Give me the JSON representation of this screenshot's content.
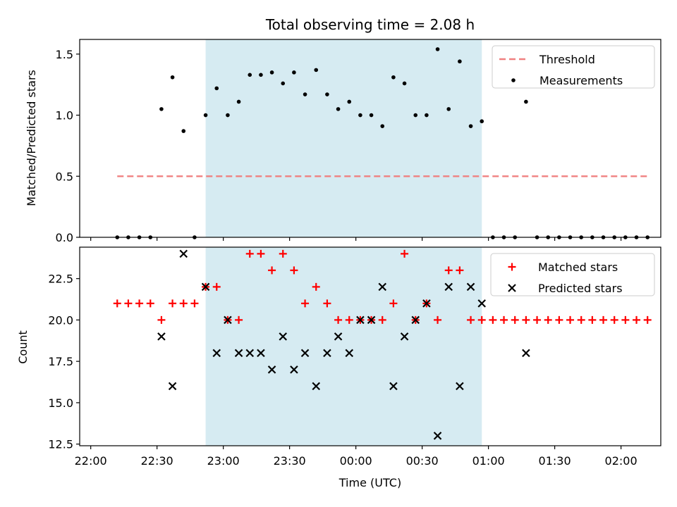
{
  "chart_data": {
    "type": "scatter",
    "title": "Total observing time = 2.08 h",
    "xlabel": "Time (UTC)",
    "x_ticks": [
      "22:00",
      "22:30",
      "23:00",
      "23:30",
      "00:00",
      "00:30",
      "01:00",
      "01:30",
      "02:00"
    ],
    "x_unit": "minutes since 22:00",
    "xlim": [
      -5,
      258
    ],
    "shaded_interval": {
      "from": 52,
      "to": 177,
      "color": "#add8e6"
    },
    "panels": [
      {
        "ylabel": "Matched/Predicted stars",
        "ylim": [
          0,
          1.62
        ],
        "y_ticks": [
          "0.0",
          "0.5",
          "1.0",
          "1.5"
        ],
        "legend_position": "top-right",
        "series": [
          {
            "name": "Threshold",
            "kind": "dashed-line",
            "color": "#f08080",
            "x": [
              12,
              252
            ],
            "y": [
              0.5,
              0.5
            ]
          },
          {
            "name": "Measurements",
            "kind": "points",
            "color": "#000000",
            "points": [
              [
                12,
                0
              ],
              [
                17,
                0
              ],
              [
                22,
                0
              ],
              [
                27,
                0
              ],
              [
                32,
                1.05
              ],
              [
                37,
                1.31
              ],
              [
                42,
                0.87
              ],
              [
                47,
                0
              ],
              [
                52,
                1.0
              ],
              [
                57,
                1.22
              ],
              [
                62,
                1.0
              ],
              [
                67,
                1.11
              ],
              [
                72,
                1.33
              ],
              [
                77,
                1.33
              ],
              [
                82,
                1.35
              ],
              [
                87,
                1.26
              ],
              [
                92,
                1.35
              ],
              [
                97,
                1.17
              ],
              [
                102,
                1.37
              ],
              [
                107,
                1.17
              ],
              [
                112,
                1.05
              ],
              [
                117,
                1.11
              ],
              [
                122,
                1.0
              ],
              [
                127,
                1.0
              ],
              [
                132,
                0.91
              ],
              [
                137,
                1.31
              ],
              [
                142,
                1.26
              ],
              [
                147,
                1.0
              ],
              [
                152,
                1.0
              ],
              [
                157,
                1.54
              ],
              [
                162,
                1.05
              ],
              [
                167,
                1.44
              ],
              [
                172,
                0.91
              ],
              [
                177,
                0.95
              ],
              [
                182,
                0
              ],
              [
                187,
                0
              ],
              [
                192,
                0
              ],
              [
                197,
                1.11
              ],
              [
                202,
                0
              ],
              [
                207,
                0
              ],
              [
                212,
                0
              ],
              [
                217,
                0
              ],
              [
                222,
                0
              ],
              [
                227,
                0
              ],
              [
                232,
                0
              ],
              [
                237,
                0
              ],
              [
                242,
                0
              ],
              [
                247,
                0
              ],
              [
                252,
                0
              ]
            ]
          }
        ]
      },
      {
        "ylabel": "Count",
        "ylim": [
          12.4,
          24.4
        ],
        "y_ticks": [
          "12.5",
          "15.0",
          "17.5",
          "20.0",
          "22.5"
        ],
        "legend_position": "top-right",
        "series": [
          {
            "name": "Matched stars",
            "kind": "plus",
            "color": "#ff0000",
            "points": [
              [
                12,
                21
              ],
              [
                17,
                21
              ],
              [
                22,
                21
              ],
              [
                27,
                21
              ],
              [
                32,
                20
              ],
              [
                37,
                21
              ],
              [
                42,
                21
              ],
              [
                47,
                21
              ],
              [
                52,
                22
              ],
              [
                57,
                22
              ],
              [
                62,
                20
              ],
              [
                67,
                20
              ],
              [
                72,
                24
              ],
              [
                77,
                24
              ],
              [
                82,
                23
              ],
              [
                87,
                24
              ],
              [
                92,
                23
              ],
              [
                97,
                21
              ],
              [
                102,
                22
              ],
              [
                107,
                21
              ],
              [
                112,
                20
              ],
              [
                117,
                20
              ],
              [
                122,
                20
              ],
              [
                127,
                20
              ],
              [
                132,
                20
              ],
              [
                137,
                21
              ],
              [
                142,
                24
              ],
              [
                147,
                20
              ],
              [
                152,
                21
              ],
              [
                157,
                20
              ],
              [
                162,
                23
              ],
              [
                167,
                23
              ],
              [
                172,
                20
              ],
              [
                177,
                20
              ],
              [
                182,
                20
              ],
              [
                187,
                20
              ],
              [
                192,
                20
              ],
              [
                197,
                20
              ],
              [
                202,
                20
              ],
              [
                207,
                20
              ],
              [
                212,
                20
              ],
              [
                217,
                20
              ],
              [
                222,
                20
              ],
              [
                227,
                20
              ],
              [
                232,
                20
              ],
              [
                237,
                20
              ],
              [
                242,
                20
              ],
              [
                247,
                20
              ],
              [
                252,
                20
              ]
            ]
          },
          {
            "name": "Predicted stars",
            "kind": "x",
            "color": "#000000",
            "points": [
              [
                32,
                19
              ],
              [
                37,
                16
              ],
              [
                42,
                24
              ],
              [
                52,
                22
              ],
              [
                57,
                18
              ],
              [
                62,
                20
              ],
              [
                67,
                18
              ],
              [
                72,
                18
              ],
              [
                77,
                18
              ],
              [
                82,
                17
              ],
              [
                87,
                19
              ],
              [
                92,
                17
              ],
              [
                97,
                18
              ],
              [
                102,
                16
              ],
              [
                107,
                18
              ],
              [
                112,
                19
              ],
              [
                117,
                18
              ],
              [
                122,
                20
              ],
              [
                127,
                20
              ],
              [
                132,
                22
              ],
              [
                137,
                16
              ],
              [
                142,
                19
              ],
              [
                147,
                20
              ],
              [
                152,
                21
              ],
              [
                157,
                13
              ],
              [
                162,
                22
              ],
              [
                167,
                16
              ],
              [
                172,
                22
              ],
              [
                177,
                21
              ],
              [
                197,
                18
              ]
            ]
          }
        ]
      }
    ]
  }
}
